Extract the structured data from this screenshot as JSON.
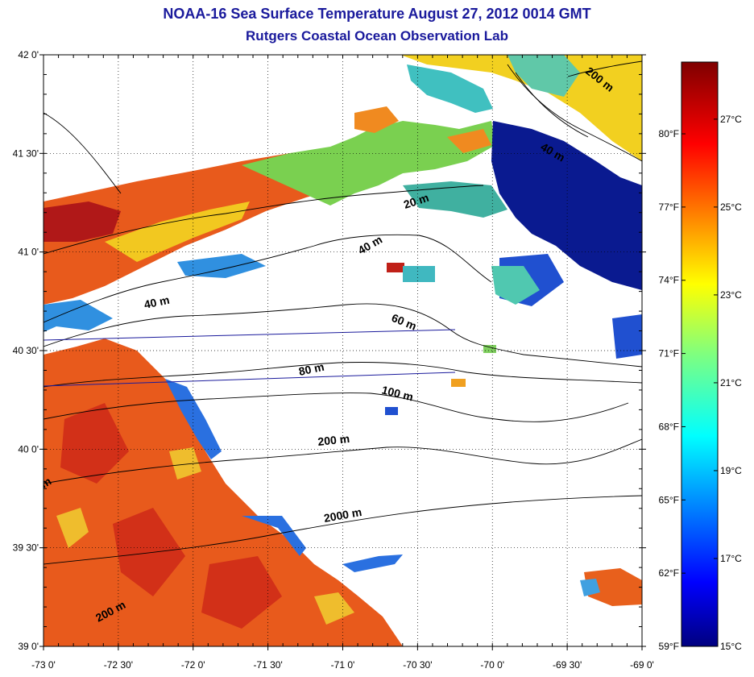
{
  "title": "NOAA-16 Sea Surface Temperature August 27, 2012 0014 GMT",
  "subtitle": "Rutgers Coastal Ocean Observation Lab",
  "lat_ticks": [
    {
      "value": 42.0,
      "label": "42 0'"
    },
    {
      "value": 41.5,
      "label": "41 30'"
    },
    {
      "value": 41.0,
      "label": "41 0'"
    },
    {
      "value": 40.5,
      "label": "40 30'"
    },
    {
      "value": 40.0,
      "label": "40 0'"
    },
    {
      "value": 39.5,
      "label": "39 30'"
    },
    {
      "value": 39.0,
      "label": "39 0'"
    }
  ],
  "lon_ticks": [
    {
      "value": -73.0,
      "label": "-73 0'"
    },
    {
      "value": -72.5,
      "label": "-72 30'"
    },
    {
      "value": -72.0,
      "label": "-72 0'"
    },
    {
      "value": -71.5,
      "label": "-71 30'"
    },
    {
      "value": -71.0,
      "label": "-71 0'"
    },
    {
      "value": -70.5,
      "label": "-70 30'"
    },
    {
      "value": -70.0,
      "label": "-70 0'"
    },
    {
      "value": -69.5,
      "label": "-69 30'"
    },
    {
      "value": -69.0,
      "label": "-69 0'"
    }
  ],
  "lat_range": [
    39.0,
    42.0
  ],
  "lon_range": [
    -73.0,
    -69.0
  ],
  "colorbar": {
    "celsius_ticks": [
      {
        "value": 27,
        "label": "27°C"
      },
      {
        "value": 25,
        "label": "25°C"
      },
      {
        "value": 23,
        "label": "23°C"
      },
      {
        "value": 21,
        "label": "21°C"
      },
      {
        "value": 19,
        "label": "19°C"
      },
      {
        "value": 17,
        "label": "17°C"
      },
      {
        "value": 15,
        "label": "15°C"
      }
    ],
    "fahrenheit_ticks": [
      {
        "value": 80,
        "label": "80°F"
      },
      {
        "value": 77,
        "label": "77°F"
      },
      {
        "value": 74,
        "label": "74°F"
      },
      {
        "value": 71,
        "label": "71°F"
      },
      {
        "value": 68,
        "label": "68°F"
      },
      {
        "value": 65,
        "label": "65°F"
      },
      {
        "value": 62,
        "label": "62°F"
      },
      {
        "value": 59,
        "label": "59°F"
      }
    ],
    "range_c": [
      15,
      28.3
    ],
    "colors": {
      "warm": "#e8501a",
      "hot": "#c0141a",
      "mild": "#f0d020",
      "cool": "#40c0a0",
      "cold": "#0a1a90",
      "coastal_blue": "#3080e0",
      "land": "#40b860",
      "extreme_hot": "#7a0000"
    }
  },
  "contour_labels": [
    {
      "text": "20 m"
    },
    {
      "text": "40 m"
    },
    {
      "text": "40 m"
    },
    {
      "text": "60 m"
    },
    {
      "text": "80 m"
    },
    {
      "text": "100 m"
    },
    {
      "text": "200 m"
    },
    {
      "text": "2000 m"
    },
    {
      "text": "200 m"
    },
    {
      "text": "200 m"
    },
    {
      "text": "40 m"
    },
    {
      "text": "m"
    }
  ]
}
